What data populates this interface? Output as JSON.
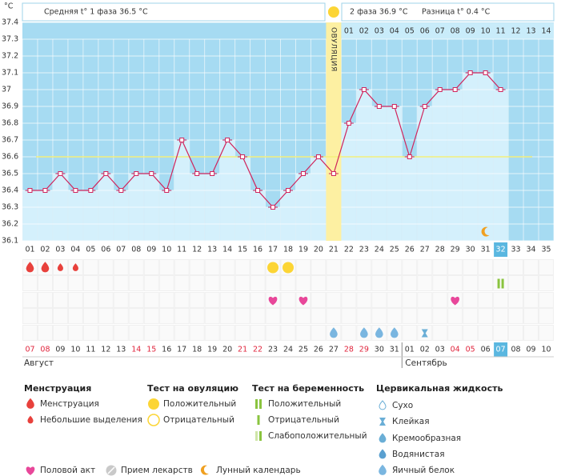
{
  "chart_data": {
    "type": "line",
    "unit": "°C",
    "categories": [
      "01",
      "02",
      "03",
      "04",
      "05",
      "06",
      "07",
      "08",
      "09",
      "10",
      "11",
      "12",
      "13",
      "14",
      "15",
      "16",
      "17",
      "18",
      "19",
      "20",
      "21",
      "22",
      "23",
      "24",
      "25",
      "26",
      "27",
      "28",
      "29",
      "30",
      "31",
      "32",
      "33",
      "34",
      "35"
    ],
    "values": [
      36.4,
      36.4,
      36.5,
      36.4,
      36.4,
      36.5,
      36.4,
      36.5,
      36.5,
      36.4,
      36.7,
      36.5,
      36.5,
      36.7,
      36.6,
      36.4,
      36.3,
      36.4,
      36.5,
      36.6,
      36.5,
      36.8,
      37.0,
      36.9,
      36.9,
      36.6,
      36.9,
      37.0,
      37.0,
      37.1,
      37.1,
      37.0,
      null,
      null,
      null
    ],
    "ylim": [
      36.1,
      37.4
    ],
    "yticks": [
      36.1,
      36.2,
      36.3,
      36.4,
      36.5,
      36.6,
      36.7,
      36.8,
      36.9,
      37,
      37.1,
      37.2,
      37.3,
      37.4
    ],
    "coverline": 36.6,
    "ovulation_day": 21,
    "ovulation_label": "ОВУЛЯЦИЯ",
    "highlight_day": 32,
    "moon_day": 31,
    "color": "#d0245c"
  },
  "header": {
    "phase1": "Средняя t° 1 фаза 36.5 °C",
    "phase2": "2 фаза 36.9 °C",
    "difference": "Разница t° 0.4 °C"
  },
  "phase2_days": [
    "01",
    "02",
    "03",
    "04",
    "05",
    "06",
    "07",
    "08",
    "09",
    "10",
    "11",
    "12",
    "13",
    "14"
  ],
  "dates": [
    "07",
    "08",
    "09",
    "10",
    "11",
    "12",
    "13",
    "14",
    "15",
    "16",
    "17",
    "18",
    "19",
    "20",
    "21",
    "22",
    "23",
    "24",
    "25",
    "26",
    "27",
    "28",
    "29",
    "30",
    "31",
    "01",
    "02",
    "03",
    "04",
    "05",
    "06",
    "07",
    "08",
    "09",
    "10"
  ],
  "weekend": [
    true,
    true,
    false,
    false,
    false,
    false,
    false,
    true,
    true,
    false,
    false,
    false,
    false,
    false,
    true,
    true,
    false,
    false,
    false,
    false,
    false,
    true,
    true,
    false,
    false,
    false,
    false,
    false,
    true,
    true,
    false,
    false,
    false,
    false,
    false
  ],
  "months": [
    "Август",
    "Сентябрь"
  ],
  "events": [
    {
      "day": 1,
      "kind": "menstruation"
    },
    {
      "day": 2,
      "kind": "menstruation"
    },
    {
      "day": 3,
      "kind": "spotting"
    },
    {
      "day": 4,
      "kind": "spotting"
    },
    {
      "day": 17,
      "kind": "ovulation-positive"
    },
    {
      "day": 18,
      "kind": "ovulation-positive"
    },
    {
      "day": 32,
      "kind": "pregnancy-positive"
    },
    {
      "day": 17,
      "kind": "intercourse"
    },
    {
      "day": 19,
      "kind": "intercourse"
    },
    {
      "day": 29,
      "kind": "intercourse"
    },
    {
      "day": 21,
      "kind": "eggwhite"
    },
    {
      "day": 23,
      "kind": "eggwhite"
    },
    {
      "day": 24,
      "kind": "eggwhite"
    },
    {
      "day": 25,
      "kind": "eggwhite"
    },
    {
      "day": 27,
      "kind": "sticky"
    }
  ],
  "legend": {
    "menstruation": {
      "title": "Менструация",
      "items": [
        "Менструация",
        "Небольшие выделения"
      ]
    },
    "ovulation_test": {
      "title": "Тест на овуляцию",
      "items": [
        "Положительный",
        "Отрицательный"
      ]
    },
    "pregnancy_test": {
      "title": "Тест на беременность",
      "items": [
        "Положительный",
        "Отрицательный",
        "Слабоположительный"
      ]
    },
    "cervical": {
      "title": "Цервикальная жидкость",
      "items": [
        "Сухо",
        "Клейкая",
        "Кремообразная",
        "Водянистая",
        "Яичный белок"
      ]
    },
    "other": [
      "Половой акт",
      "Прием лекарств",
      "Лунный календарь"
    ]
  }
}
